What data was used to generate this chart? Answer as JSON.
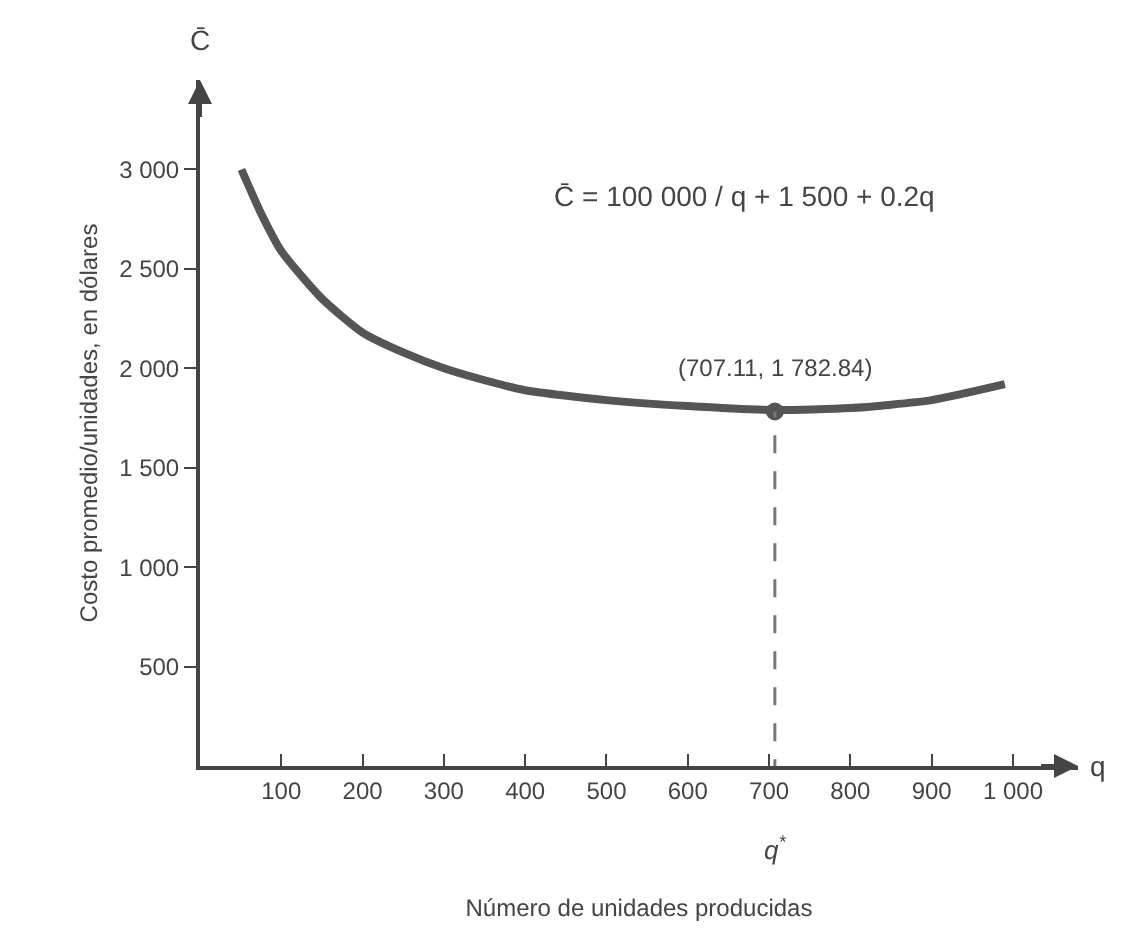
{
  "chart_data": {
    "type": "line",
    "xlabel": "Número de unidades producidas",
    "ylabel": "Costo promedio/unidades, en dólares",
    "x": [
      51,
      75,
      100,
      150,
      200,
      250,
      300,
      350,
      400,
      500,
      600,
      707.11,
      800,
      900,
      990
    ],
    "series": [
      {
        "color": "#555555",
        "values": [
          3000,
          2780,
          2590,
          2350,
          2180,
          2080,
          2000,
          1940,
          1890,
          1840,
          1810,
          1790,
          1800,
          1840,
          1920
        ]
      },
      {
        "type": "scatter",
        "color": "#555555",
        "x": [
          707.11
        ],
        "values": [
          1782.84
        ]
      }
    ],
    "xlim": [
      0,
      1080
    ],
    "ylim": [
      0,
      3450
    ],
    "xticks": [
      100,
      200,
      300,
      400,
      500,
      600,
      700,
      800,
      900,
      {
        "value": 1000,
        "label": "1 000"
      }
    ],
    "yticks": [
      500,
      {
        "value": 1000,
        "label": "1 000"
      },
      {
        "value": 1500,
        "label": "1 500"
      },
      {
        "value": 2000,
        "label": "2 000"
      },
      {
        "value": 2500,
        "label": "2 500"
      },
      {
        "value": 3000,
        "label": "3 000"
      }
    ],
    "ref_lines": [
      {
        "axis": "x",
        "value": 707.11,
        "label": "q$^{*}$",
        "line_style": "dashed",
        "color": "#777777"
      }
    ],
    "annotations": [
      {
        "text": "(707.11, 1 782.84)",
        "x": 707.11,
        "y": 1782.84
      },
      "C̄ = 100 000 / q + 1 500 + 0.2q",
      "C̄",
      "q"
    ],
    "legend": false
  }
}
